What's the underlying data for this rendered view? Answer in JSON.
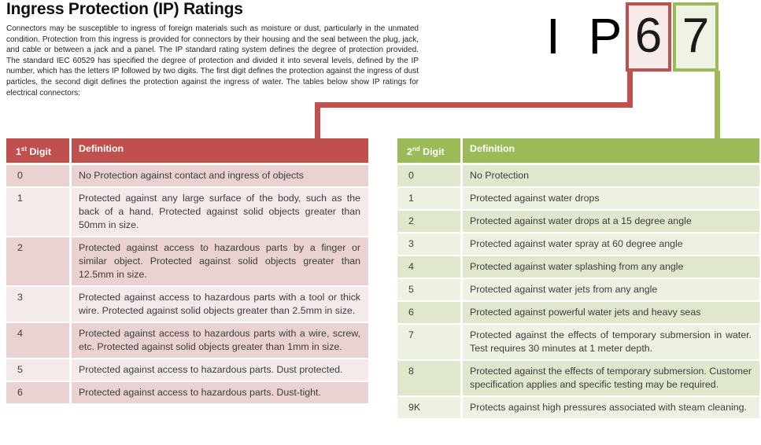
{
  "document": {
    "title": "Ingress Protection (IP) Ratings",
    "intro": "Connectors may be susceptible to ingress of foreign materials such as moisture or dust, particularly in the unmated condition. Protection from this ingress is provided for connectors by their housing and the seal between the plug, jack, and cable or between a jack and a panel. The IP standard rating system defines the degree of protection provided. The standard IEC 60529 has specified the degree of protection and divided it into several levels, defined by the IP number, which has the letters IP followed by two digits. The first digit defines the protection against the ingress of dust particles, the second digit defines the protection against the ingress of water. The tables below show IP ratings for electrical connectors:"
  },
  "ip_graphic": {
    "prefix_letters": "I P",
    "first_digit": "6",
    "second_digit": "7"
  },
  "colors": {
    "red_accent": "#c0504d",
    "red_header": "#bf504e",
    "red_box_fill": "#f8ecea",
    "red_band_dark": "#e9d2d1",
    "red_band_light": "#f4eae9",
    "green_accent": "#9bbb59",
    "green_header": "#9bbb59",
    "green_box_fill": "#eff3e3",
    "green_band_dark": "#dfe7cd",
    "green_band_light": "#edf2e3"
  },
  "first_digit_table": {
    "digit_header": {
      "num": "1",
      "sup": "st",
      "rest": "Digit"
    },
    "definition_header": "Definition",
    "rows": [
      {
        "digit": "0",
        "definition": "No Protection against contact and ingress of objects"
      },
      {
        "digit": "1",
        "definition": "Protected against any large surface of the body, such as the back of a hand. Protected against solid objects greater than 50mm in size."
      },
      {
        "digit": "2",
        "definition": "Protected against access to hazardous parts by a finger or similar object. Protected against solid objects greater than 12.5mm in size."
      },
      {
        "digit": "3",
        "definition": "Protected against access to hazardous parts with a tool or thick wire. Protected against solid objects greater than 2.5mm in size."
      },
      {
        "digit": "4",
        "definition": "Protected against access to hazardous parts with a wire, screw, etc. Protected against solid objects greater than 1mm in size."
      },
      {
        "digit": "5",
        "definition": "Protected against access to hazardous parts. Dust protected."
      },
      {
        "digit": "6",
        "definition": "Protected against access to hazardous parts. Dust-tight."
      }
    ]
  },
  "second_digit_table": {
    "digit_header": {
      "num": "2",
      "sup": "nd",
      "rest": "Digit"
    },
    "definition_header": "Definition",
    "rows": [
      {
        "digit": "0",
        "definition": "No Protection"
      },
      {
        "digit": "1",
        "definition": "Protected against water drops"
      },
      {
        "digit": "2",
        "definition": "Protected against water drops at a 15 degree angle"
      },
      {
        "digit": "3",
        "definition": "Protected against water spray at 60 degree angle"
      },
      {
        "digit": "4",
        "definition": "Protected against water splashing from any angle"
      },
      {
        "digit": "5",
        "definition": "Protected against water jets from any angle"
      },
      {
        "digit": "6",
        "definition": "Protected against powerful water jets and heavy seas"
      },
      {
        "digit": "7",
        "definition": "Protected against the effects of temporary submersion in water. Test requires 30 minutes at 1 meter depth."
      },
      {
        "digit": "8",
        "definition": "Protected against the effects of temporary submersion. Customer specification applies and specific testing may be required."
      },
      {
        "digit": "9K",
        "definition": "Protects against high pressures associated with steam cleaning."
      }
    ]
  }
}
